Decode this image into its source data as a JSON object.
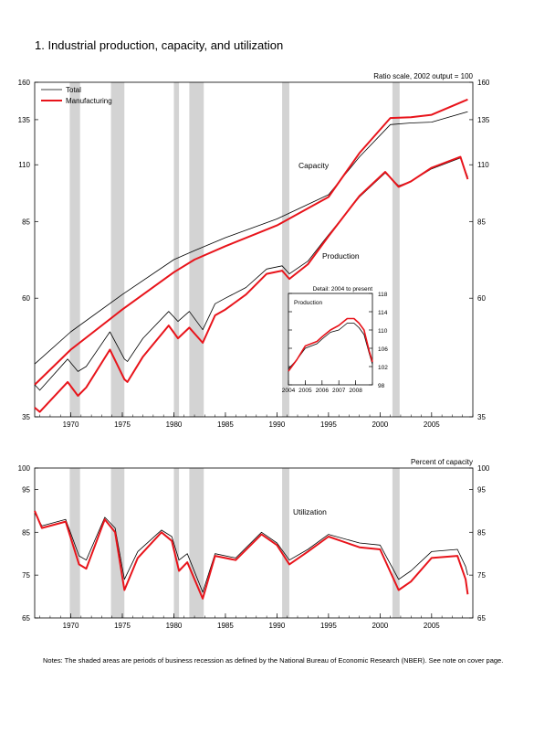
{
  "title": "1.  Industrial production, capacity, and utilization",
  "notes": "Notes: The shaded areas are periods of business recession as defined by the National Bureau of Economic Research (NBER). See note on cover page.",
  "colors": {
    "total": "#000000",
    "manufacturing": "#e8141b",
    "recession": "#d3d3d3",
    "inset_total": "#000000"
  },
  "chart_data": [
    {
      "type": "line",
      "title": "",
      "subtitle": "Ratio scale, 2002 output = 100",
      "yscale": "log",
      "ylim": [
        35,
        160
      ],
      "yticks": [
        35,
        60,
        85,
        110,
        135,
        160
      ],
      "xlim": [
        1966.5,
        2009.0
      ],
      "xticks": [
        1970,
        1975,
        1980,
        1985,
        1990,
        1995,
        2000,
        2005
      ],
      "legend_placement": "top-left",
      "recessions": [
        [
          1969.9,
          1970.9
        ],
        [
          1973.9,
          1975.2
        ],
        [
          1980.0,
          1980.5
        ],
        [
          1981.5,
          1982.9
        ],
        [
          1990.5,
          1991.2
        ],
        [
          2001.2,
          2001.9
        ]
      ],
      "annotations": [
        "Capacity",
        "Production"
      ],
      "series": [
        {
          "name": "Total",
          "role": "capacity",
          "x": [
            1966.5,
            1970,
            1975,
            1980,
            1982,
            1985,
            1990,
            1995,
            1998,
            2001,
            2003,
            2005,
            2008.5
          ],
          "y": [
            44.5,
            51.5,
            61,
            71.5,
            74.5,
            79,
            86,
            96,
            114,
            132,
            133,
            133.5,
            140
          ]
        },
        {
          "name": "Manufacturing",
          "role": "capacity",
          "x": [
            1966.5,
            1970,
            1975,
            1980,
            1982,
            1985,
            1990,
            1995,
            1998,
            2001,
            2003,
            2005,
            2008.5
          ],
          "y": [
            40.5,
            47.5,
            57,
            67.5,
            71.5,
            76,
            83.5,
            95,
            116,
            136,
            136.5,
            138,
            148
          ]
        },
        {
          "name": "Total",
          "role": "production",
          "x": [
            1966.5,
            1967.0,
            1969.7,
            1970.7,
            1971.5,
            1973.8,
            1975.2,
            1975.5,
            1977,
            1979.5,
            1980.4,
            1981.5,
            1982.8,
            1984,
            1985,
            1987,
            1989,
            1990.5,
            1991.2,
            1993,
            1995,
            1998,
            2000.5,
            2001.8,
            2003,
            2005,
            2007.8,
            2008.5
          ],
          "y": [
            40.5,
            39.5,
            45.5,
            43,
            44,
            51.5,
            45.5,
            45,
            50,
            56.5,
            54,
            56.5,
            52,
            58.5,
            60,
            63,
            68.5,
            69.5,
            67,
            71,
            80,
            95,
            106,
            100,
            102,
            108,
            113.5,
            104
          ]
        },
        {
          "name": "Manufacturing",
          "role": "production",
          "x": [
            1966.5,
            1967.0,
            1969.7,
            1970.7,
            1971.5,
            1973.8,
            1975.2,
            1975.5,
            1977,
            1979.5,
            1980.4,
            1981.5,
            1982.8,
            1984,
            1985,
            1987,
            1989,
            1990.5,
            1991.2,
            1993,
            1995,
            1998,
            2000.5,
            2001.8,
            2003,
            2005,
            2007.8,
            2008.5
          ],
          "y": [
            36.5,
            35.8,
            41,
            38.5,
            40,
            47.5,
            41.5,
            41,
            46,
            53,
            50,
            52.5,
            49,
            55.5,
            57,
            61,
            67,
            68,
            65.5,
            70,
            79.5,
            95.5,
            106.5,
            99.5,
            102,
            108.5,
            114,
            103
          ]
        }
      ]
    },
    {
      "type": "line",
      "title": "Detail: 2004 to present",
      "annotations": [
        "Production"
      ],
      "ylim": [
        98,
        118
      ],
      "yticks": [
        98,
        102,
        106,
        110,
        114,
        118
      ],
      "xlim": [
        2004.0,
        2009.0
      ],
      "xticks": [
        2004,
        2005,
        2006,
        2007,
        2008
      ],
      "series": [
        {
          "name": "Total",
          "x": [
            2004.0,
            2004.5,
            2005.0,
            2005.7,
            2006.0,
            2006.5,
            2007.0,
            2007.5,
            2007.9,
            2008.2,
            2008.5,
            2008.8,
            2009.0
          ],
          "y": [
            101.5,
            103.5,
            106,
            107,
            108,
            109.5,
            110,
            111.5,
            111.5,
            110.5,
            109,
            105,
            102.5
          ]
        },
        {
          "name": "Manufacturing",
          "x": [
            2004.0,
            2004.5,
            2005.0,
            2005.7,
            2006.0,
            2006.5,
            2007.0,
            2007.5,
            2007.9,
            2008.2,
            2008.5,
            2008.8,
            2009.0
          ],
          "y": [
            101,
            103.5,
            106.5,
            107.5,
            108.5,
            110,
            111,
            112.5,
            112.5,
            111.5,
            110,
            105.5,
            103
          ]
        }
      ]
    },
    {
      "type": "line",
      "title": "",
      "subtitle": "Percent of capacity",
      "annotations": [
        "Utilization"
      ],
      "ylim": [
        65,
        100
      ],
      "yticks": [
        65,
        75,
        85,
        95,
        100
      ],
      "xlim": [
        1966.5,
        2009.0
      ],
      "xticks": [
        1970,
        1975,
        1980,
        1985,
        1990,
        1995,
        2000,
        2005
      ],
      "recessions": [
        [
          1969.9,
          1970.9
        ],
        [
          1973.9,
          1975.2
        ],
        [
          1980.0,
          1980.5
        ],
        [
          1981.5,
          1982.9
        ],
        [
          1990.5,
          1991.2
        ],
        [
          2001.2,
          2001.9
        ]
      ],
      "series": [
        {
          "name": "Total",
          "x": [
            1966.5,
            1967.2,
            1969.5,
            1970.8,
            1971.5,
            1973.3,
            1974.3,
            1975.2,
            1976.5,
            1978.8,
            1979.8,
            1980.5,
            1981.3,
            1982.8,
            1984,
            1986,
            1988.5,
            1990.0,
            1991.2,
            1993,
            1995,
            1998,
            2000.0,
            2001.8,
            2003,
            2005,
            2007.5,
            2008.3,
            2008.5
          ],
          "y": [
            89.5,
            86.5,
            88,
            79.5,
            78.5,
            88.5,
            86,
            74,
            80.5,
            85.5,
            84,
            78.5,
            80,
            71,
            80,
            79,
            85,
            82.5,
            78.5,
            81,
            84.5,
            82.5,
            82,
            74,
            76,
            80.5,
            81,
            77,
            75
          ]
        },
        {
          "name": "Manufacturing",
          "x": [
            1966.5,
            1967.2,
            1969.5,
            1970.8,
            1971.5,
            1973.3,
            1974.3,
            1975.2,
            1976.5,
            1978.8,
            1979.8,
            1980.5,
            1981.3,
            1982.8,
            1984,
            1986,
            1988.5,
            1990.0,
            1991.2,
            1993,
            1995,
            1998,
            2000.0,
            2001.8,
            2003,
            2005,
            2007.5,
            2008.3,
            2008.5
          ],
          "y": [
            90,
            86,
            87.5,
            77.5,
            76.5,
            88,
            85,
            71.5,
            79,
            85,
            83,
            76,
            78,
            69.5,
            79.5,
            78.5,
            84.5,
            82,
            77.5,
            80.5,
            84,
            81.5,
            81,
            71.5,
            73.5,
            79,
            79.5,
            74,
            70.5
          ]
        }
      ]
    }
  ]
}
